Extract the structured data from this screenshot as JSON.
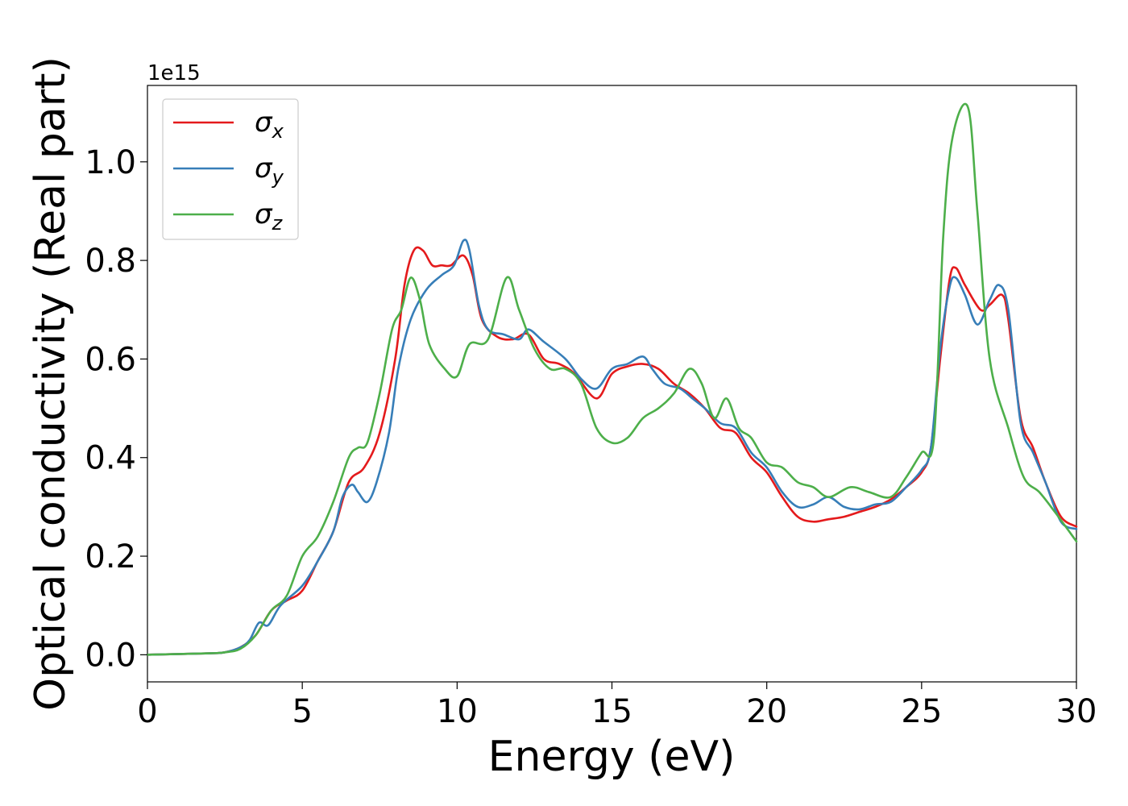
{
  "chart_data": {
    "type": "line",
    "xlabel": "Energy (eV)",
    "ylabel": "Optical conductivity (Real part)",
    "y_offset_label": "1e15",
    "xlim": [
      0,
      30
    ],
    "ylim": [
      -0.055,
      1.155
    ],
    "x_ticks": [
      "0",
      "5",
      "10",
      "15",
      "20",
      "25",
      "30"
    ],
    "y_ticks": [
      "0.0",
      "0.2",
      "0.4",
      "0.6",
      "0.8",
      "1.0"
    ],
    "grid": false,
    "legend_position": "upper-left",
    "series": [
      {
        "name": "σx",
        "label_base": "σ",
        "label_sub": "x",
        "color": "#e41a1c",
        "points": [
          [
            0,
            0
          ],
          [
            2,
            0.003
          ],
          [
            2.5,
            0.005
          ],
          [
            3,
            0.015
          ],
          [
            3.5,
            0.04
          ],
          [
            4,
            0.09
          ],
          [
            4.5,
            0.11
          ],
          [
            5,
            0.13
          ],
          [
            5.5,
            0.19
          ],
          [
            6,
            0.25
          ],
          [
            6.5,
            0.35
          ],
          [
            7,
            0.38
          ],
          [
            7.5,
            0.45
          ],
          [
            8,
            0.6
          ],
          [
            8.3,
            0.75
          ],
          [
            8.6,
            0.82
          ],
          [
            8.9,
            0.82
          ],
          [
            9.2,
            0.79
          ],
          [
            9.5,
            0.79
          ],
          [
            9.8,
            0.79
          ],
          [
            10.2,
            0.81
          ],
          [
            10.5,
            0.77
          ],
          [
            10.8,
            0.68
          ],
          [
            11.3,
            0.645
          ],
          [
            11.8,
            0.64
          ],
          [
            12.3,
            0.65
          ],
          [
            12.8,
            0.6
          ],
          [
            13.3,
            0.59
          ],
          [
            13.8,
            0.57
          ],
          [
            14.5,
            0.52
          ],
          [
            15,
            0.57
          ],
          [
            15.5,
            0.585
          ],
          [
            16,
            0.59
          ],
          [
            16.5,
            0.58
          ],
          [
            17,
            0.55
          ],
          [
            17.5,
            0.53
          ],
          [
            18,
            0.5
          ],
          [
            18.5,
            0.46
          ],
          [
            19,
            0.45
          ],
          [
            19.5,
            0.4
          ],
          [
            20,
            0.37
          ],
          [
            20.5,
            0.32
          ],
          [
            21,
            0.28
          ],
          [
            21.5,
            0.27
          ],
          [
            22,
            0.275
          ],
          [
            22.5,
            0.28
          ],
          [
            23,
            0.29
          ],
          [
            23.5,
            0.3
          ],
          [
            24,
            0.315
          ],
          [
            24.5,
            0.34
          ],
          [
            25,
            0.37
          ],
          [
            25.3,
            0.42
          ],
          [
            25.6,
            0.6
          ],
          [
            25.9,
            0.76
          ],
          [
            26.1,
            0.785
          ],
          [
            26.4,
            0.75
          ],
          [
            26.9,
            0.7
          ],
          [
            27.2,
            0.71
          ],
          [
            27.6,
            0.73
          ],
          [
            27.8,
            0.68
          ],
          [
            28.2,
            0.48
          ],
          [
            28.6,
            0.42
          ],
          [
            29,
            0.35
          ],
          [
            29.5,
            0.28
          ],
          [
            30,
            0.26
          ]
        ]
      },
      {
        "name": "σy",
        "label_base": "σ",
        "label_sub": "y",
        "color": "#377eb8",
        "points": [
          [
            0,
            0
          ],
          [
            2,
            0.003
          ],
          [
            2.5,
            0.005
          ],
          [
            3,
            0.015
          ],
          [
            3.3,
            0.03
          ],
          [
            3.6,
            0.065
          ],
          [
            3.9,
            0.06
          ],
          [
            4.3,
            0.1
          ],
          [
            5,
            0.14
          ],
          [
            5.5,
            0.19
          ],
          [
            6,
            0.25
          ],
          [
            6.3,
            0.32
          ],
          [
            6.6,
            0.345
          ],
          [
            6.8,
            0.33
          ],
          [
            7.1,
            0.31
          ],
          [
            7.4,
            0.35
          ],
          [
            7.8,
            0.45
          ],
          [
            8.1,
            0.58
          ],
          [
            8.5,
            0.68
          ],
          [
            9,
            0.74
          ],
          [
            9.5,
            0.77
          ],
          [
            9.9,
            0.79
          ],
          [
            10.2,
            0.84
          ],
          [
            10.4,
            0.82
          ],
          [
            10.7,
            0.71
          ],
          [
            11,
            0.66
          ],
          [
            11.5,
            0.65
          ],
          [
            12,
            0.64
          ],
          [
            12.3,
            0.66
          ],
          [
            12.8,
            0.635
          ],
          [
            13.5,
            0.6
          ],
          [
            14,
            0.56
          ],
          [
            14.5,
            0.54
          ],
          [
            15,
            0.58
          ],
          [
            15.5,
            0.59
          ],
          [
            16,
            0.605
          ],
          [
            16.3,
            0.58
          ],
          [
            16.7,
            0.55
          ],
          [
            17.2,
            0.54
          ],
          [
            17.6,
            0.52
          ],
          [
            18,
            0.5
          ],
          [
            18.5,
            0.47
          ],
          [
            19,
            0.46
          ],
          [
            19.5,
            0.41
          ],
          [
            20,
            0.38
          ],
          [
            20.5,
            0.33
          ],
          [
            21,
            0.3
          ],
          [
            21.5,
            0.305
          ],
          [
            22,
            0.32
          ],
          [
            22.5,
            0.3
          ],
          [
            23,
            0.295
          ],
          [
            23.5,
            0.305
          ],
          [
            24,
            0.31
          ],
          [
            24.5,
            0.34
          ],
          [
            25,
            0.375
          ],
          [
            25.3,
            0.42
          ],
          [
            25.6,
            0.62
          ],
          [
            25.9,
            0.745
          ],
          [
            26.1,
            0.765
          ],
          [
            26.4,
            0.73
          ],
          [
            26.8,
            0.67
          ],
          [
            27.2,
            0.72
          ],
          [
            27.5,
            0.75
          ],
          [
            27.8,
            0.7
          ],
          [
            28.2,
            0.47
          ],
          [
            28.6,
            0.41
          ],
          [
            29,
            0.35
          ],
          [
            29.5,
            0.27
          ],
          [
            30,
            0.255
          ]
        ]
      },
      {
        "name": "σz",
        "label_base": "σ",
        "label_sub": "z",
        "color": "#4daf4a",
        "points": [
          [
            0,
            0
          ],
          [
            2,
            0.003
          ],
          [
            2.5,
            0.005
          ],
          [
            3,
            0.012
          ],
          [
            3.5,
            0.04
          ],
          [
            4,
            0.09
          ],
          [
            4.5,
            0.12
          ],
          [
            5,
            0.2
          ],
          [
            5.5,
            0.24
          ],
          [
            6,
            0.31
          ],
          [
            6.5,
            0.4
          ],
          [
            6.8,
            0.42
          ],
          [
            7.1,
            0.43
          ],
          [
            7.5,
            0.53
          ],
          [
            7.9,
            0.66
          ],
          [
            8.2,
            0.7
          ],
          [
            8.5,
            0.765
          ],
          [
            8.8,
            0.72
          ],
          [
            9.1,
            0.63
          ],
          [
            9.6,
            0.58
          ],
          [
            10,
            0.565
          ],
          [
            10.4,
            0.63
          ],
          [
            11,
            0.64
          ],
          [
            11.6,
            0.765
          ],
          [
            12,
            0.7
          ],
          [
            12.5,
            0.62
          ],
          [
            13,
            0.58
          ],
          [
            13.5,
            0.58
          ],
          [
            14,
            0.55
          ],
          [
            14.5,
            0.46
          ],
          [
            15,
            0.43
          ],
          [
            15.5,
            0.44
          ],
          [
            16,
            0.48
          ],
          [
            16.5,
            0.5
          ],
          [
            17,
            0.53
          ],
          [
            17.5,
            0.58
          ],
          [
            17.9,
            0.55
          ],
          [
            18.3,
            0.48
          ],
          [
            18.7,
            0.52
          ],
          [
            19.1,
            0.46
          ],
          [
            19.5,
            0.44
          ],
          [
            20,
            0.39
          ],
          [
            20.5,
            0.38
          ],
          [
            21,
            0.35
          ],
          [
            21.5,
            0.34
          ],
          [
            22,
            0.32
          ],
          [
            22.7,
            0.34
          ],
          [
            23.3,
            0.33
          ],
          [
            24,
            0.32
          ],
          [
            24.5,
            0.36
          ],
          [
            25,
            0.41
          ],
          [
            25.4,
            0.44
          ],
          [
            25.7,
            0.85
          ],
          [
            26,
            1.05
          ],
          [
            26.5,
            1.11
          ],
          [
            26.8,
            0.9
          ],
          [
            27.2,
            0.6
          ],
          [
            27.8,
            0.46
          ],
          [
            28.3,
            0.36
          ],
          [
            28.8,
            0.33
          ],
          [
            29.3,
            0.29
          ],
          [
            30,
            0.23
          ]
        ]
      }
    ]
  }
}
